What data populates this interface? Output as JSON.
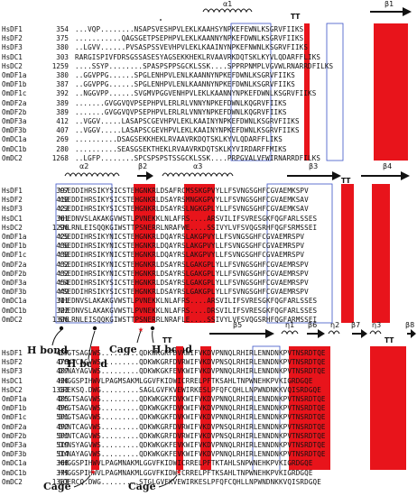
{
  "colors": {
    "conserved_bg": "#e8141b",
    "conserved_text": "#ffffff",
    "similar_text": "#e8141b",
    "box_border": "#3a52c7",
    "text": "#111111"
  },
  "blocks": [
    {
      "structure": [
        {
          "kind": "helix",
          "label": "α1"
        },
        {
          "kind": "tt",
          "label": "TT"
        },
        {
          "kind": "arrow",
          "label": "β1"
        }
      ],
      "rows": [
        {
          "name": "HsDF1",
          "pos": "354",
          "seq": "...VQP........NSAPSVESHPVLEKLKAAHSYNPKEFEWNLKSGRVFIIKS"
        },
        {
          "name": "HsDF2",
          "pos": "375",
          "seq": "...........QAGSGETPSEPHPVLEKLKAANNYNPKEFDWNLKSGRVFIIKS"
        },
        {
          "name": "HsDF3",
          "pos": "380",
          "seq": "..LGVV......PVSASPSSVEVHPVLEKLKAAINYNPKEFNWNLKSGRVFIIKS"
        },
        {
          "name": "HsDC1",
          "pos": "303",
          "seq": "RARGISPIVFDRSGSSASESYAGSEKKHEKLRVAAVRKDQTSKLKYVLQDARFFLIKS"
        },
        {
          "name": "HsDC2",
          "pos": "1259",
          "seq": "....SSYP........SPASPSPPSGCKLSSK....SPPRPNMPLVGVWLRNARRDFILKS"
        },
        {
          "name": "OmDF1a",
          "pos": "380",
          "seq": "..GGVPPG......SPGLENHPVLENLKAANNYNPKEFDWNLKSGRVFIIKS"
        },
        {
          "name": "OmDF1b",
          "pos": "387",
          "seq": "..GGVPPG......SPGLENHPVLENLKAANNYNPKEFDWNLKSGRVFIIKS"
        },
        {
          "name": "OmDF1c",
          "pos": "392",
          "seq": "..NGGVPP......SVGMVPGGVENHPVLEKLKAANNYNPKEFDWNLKSGRVFIIKS"
        },
        {
          "name": "OmDF2a",
          "pos": "389",
          "seq": ".......GVGGVQVPSEPHPVLERLRLVNNYNPKEFDWNLKQGRVFIIKS"
        },
        {
          "name": "OmDF2b",
          "pos": "389",
          "seq": ".......GVGGVQVPSEPHPVLERLRLVNNYNPKEFDWNLKQGRVFIIKS"
        },
        {
          "name": "OmDF3a",
          "pos": "412",
          "seq": "..VGGV.....LASAPSCGEVHPVLEKLKAAINYNPKEFDWNLKSGRVFIIKS"
        },
        {
          "name": "OmDF3b",
          "pos": "407",
          "seq": "..VGGV.....LASAPSCGEVHPVLEKLKAAINYNPKEFDWNLKSGRVFIIKS"
        },
        {
          "name": "OmDC1a",
          "pos": "269",
          "seq": "..........DSAGSEKKHEKLRVAAVRKDQTSKLKYVLQDARFFLIKS"
        },
        {
          "name": "OmDC1b",
          "pos": "280",
          "seq": "..........SEASGSEKTHEKLRVAAVRKDQTSKLKYVIRDARFFMIKS"
        },
        {
          "name": "OmDC2",
          "pos": "1268",
          "seq": "..LGFP........SPCSPSPSTSSGCKLSSK....PRPGVALVFWIRNARRDFILKS"
        }
      ]
    },
    {
      "structure": [
        {
          "kind": "helix",
          "label": "α2"
        },
        {
          "kind": "arrow",
          "label": "β2"
        },
        {
          "kind": "helix",
          "label": "α3"
        },
        {
          "kind": "arrow",
          "label": "β3"
        },
        {
          "kind": "tt",
          "label": "TT"
        },
        {
          "kind": "arrow",
          "label": "β4"
        }
      ],
      "rows": [
        {
          "name": "HsDF1",
          "pos": "397",
          "seq": "YSEDDIHRSIKYSICSTEHGNKRLDSAFRCMSSKGPVYLLFSVNGSGHFCGVAEMKSPV"
        },
        {
          "name": "HsDF2",
          "pos": "418",
          "seq": "YSEDDIHRSIKYSICSTEHGNKRLDSAYRSMNGKGPVYLLFSVNGSGHFCGVAEMKSAV"
        },
        {
          "name": "HsDF3",
          "pos": "423",
          "seq": "YSEDDIHRSIKYSICSTEHGNKRLDSAYRSLNGKGPLYLLFSVNGSGHFCGVAEMKSAV"
        },
        {
          "name": "HsDC1",
          "pos": "361",
          "seq": "NHEDNVSLAKAKGVWSTLPVNEKKLNLAFRS....ARSVILIFSVRESGKFQGFARLSSES"
        },
        {
          "name": "HsDC2",
          "pos": "1296",
          "seq": "SNLRNLEISQQKGIWSTTPSNERRLNRAFWE....SSIVYLVFSVQGSRHFQGFSRMSSEI"
        },
        {
          "name": "OmDF1a",
          "pos": "425",
          "seq": "YSEDDIHRSIKYNICSTEHGNKRLDQAYRSLAKGPVYLLFSVNGSGHFCGVAEMRSPV"
        },
        {
          "name": "OmDF1b",
          "pos": "436",
          "seq": "YSEDDIHRSIKYNICSTEHGNKRLDQAYRSLAKGPVYLLFSVNGSGHFCGVAEMRSPV"
        },
        {
          "name": "OmDF1c",
          "pos": "438",
          "seq": "YSEDDIHRSIKYNICSTEHGNKRLDQAYRSLAKGPVYLLFSVNGSGHFCGVAEMRSPV"
        },
        {
          "name": "OmDF2a",
          "pos": "432",
          "seq": "YSEDDIHRSIKYNICSTEHGNKRLDSAYRSLGAKGPLYLLFSVNGSGHFCGVAEMRSPV"
        },
        {
          "name": "OmDF2b",
          "pos": "432",
          "seq": "YSEDDIHRSIKYNICSTEHGNKRLDSAYRSLGAKGPLYLLFSVNGSGHFCGVAEMRSPV"
        },
        {
          "name": "OmDF3a",
          "pos": "454",
          "seq": "YSEDDIHRSIKYSICSTEHGNKRLDSAYRSLGAKGPLYLLFSVNGSGHFCGVAEMRSPV"
        },
        {
          "name": "OmDF3b",
          "pos": "449",
          "seq": "YSEDDIHRSIKYSICSTEHGNKRLDSAYRSLGAKGPLYLLFSVNGSGHFCGVAEMRSPV"
        },
        {
          "name": "OmDC1a",
          "pos": "311",
          "seq": "NHEDNVSLAKAKGVWSTLPVNEKKLNLAFRS....ARSVILIFSVRESGKFQGFARLSSES"
        },
        {
          "name": "OmDC1b",
          "pos": "322",
          "seq": "NHEDNVSLAKAKGVWSTLPVNEKKLNLAFRS....DRSVILIFSVRESGKFQGFARLSSES"
        },
        {
          "name": "OmDC2",
          "pos": "1306",
          "seq": "SNLRNLEISQQKGIWSTTPSNERRLNRAFLE....SSIVYLVFSVQGSRHFQGFARMSSEI"
        }
      ],
      "annotations": [
        {
          "label": "H bond"
        },
        {
          "label": "H bond"
        },
        {
          "label": "Cage"
        },
        {
          "label": "H bond"
        }
      ]
    },
    {
      "structure": [
        {
          "kind": "tt",
          "label": "TT"
        },
        {
          "kind": "arrow",
          "label": "β5"
        },
        {
          "kind": "helix",
          "label": "η1"
        },
        {
          "kind": "arrow",
          "label": "β6"
        },
        {
          "kind": "helix",
          "label": "η2"
        },
        {
          "kind": "arrow",
          "label": "β7"
        },
        {
          "kind": "helix",
          "label": "η3"
        },
        {
          "kind": "tt",
          "label": "TT"
        },
        {
          "kind": "arrow",
          "label": "β8"
        }
      ],
      "rows": [
        {
          "name": "HsDF1",
          "pos": "457",
          "seq": "DYGTSAGVWS.........QDKWKGKFDVKWIFVKDVPNNQLRHIRLENNDNKPVTNSRDTQE"
        },
        {
          "name": "HsDF2",
          "pos": "478",
          "seq": "DYNTCAGVWS.........QDKWKGRFDVRWIFVKDVPNSQLRHIRLENNDNKPVTNSRDTQE"
        },
        {
          "name": "HsDF3",
          "pos": "487",
          "seq": "DYNAYAGVWS.........QDKWKGKFEVKWIFVKDVPNNQLRHIRLENNDNKPVTNSRDTQE"
        },
        {
          "name": "HsDC1",
          "pos": "420",
          "seq": "HHGGSPIHWVLPAGMSAKMLGGVFKIDWICRRELPFTKSAHLTNPWNEHKPVKIGRDGQE"
        },
        {
          "name": "HsDC2",
          "pos": "1353",
          "seq": "GREKSQ.DWG.........SAGLGVFKVEWIRKESLPFQFCQHLLNPWNDNKKVQISRDGQE"
        },
        {
          "name": "OmDF1a",
          "pos": "485",
          "seq": "DYGTSAGVWS.........QDKWKGKFDVKWIFVKDVPNNQLRHIRLENNDNKPVTNSRDTQE"
        },
        {
          "name": "OmDF1b",
          "pos": "496",
          "seq": "DYGTSAGVWS.........QDKWKGKFDVKWIFVKDVPNNQLRHIRLENNDNKPVTNSRDTQE"
        },
        {
          "name": "OmDF1c",
          "pos": "501",
          "seq": "DYGTSAGVWS.........QDKWKGKFDVKWIFVKDVPNNQLRHIRLENNDNKPVTNSRDTQE"
        },
        {
          "name": "OmDF2a",
          "pos": "492",
          "seq": "DYNTCAGVWS.........QDKWKGRFDVRWIFVKDVPNSQLRHIRLENNDNKPVTNSRDTQE"
        },
        {
          "name": "OmDF2b",
          "pos": "501",
          "seq": "DYNTCAGVWS.........QDKWKGRFDVRWIFVKDVPNSQLRHIRLENNDNKPVTNSRDTQE"
        },
        {
          "name": "OmDF3a",
          "pos": "519",
          "seq": "DYNSYAGVWS.........QDKWKGKFEVKWIFVKDVPNNQLRHIRLENNDNKPVTNSRDTQE"
        },
        {
          "name": "OmDF3b",
          "pos": "514",
          "seq": "DYNAYAGVWS.........QDKWKGKFEVKWIFVKDVPNNQLRHIRLENNDNKPVTNSRDTQE"
        },
        {
          "name": "OmDC1a",
          "pos": "368",
          "seq": "HHGGSPIHWVLPAGMNAKMLGGVFKIDWICRRELPFTKTAHLSNPWNEHKPVKIGRDGQE"
        },
        {
          "name": "OmDC1b",
          "pos": "379",
          "seq": "HHGGSPIHWVLPAGMNAKMLGGVFKIDWICRRELPFTKSAHLTNPWNEHKPVKIGRDGQE"
        },
        {
          "name": "OmDC2",
          "pos": "1363",
          "seq": "GQERCQ.DWG.........STGLGVFKVEWIRKESLPFQFCQHLLNPWNDNKKVQISRDGQE"
        }
      ],
      "annotations": [
        {
          "label": "Cage"
        },
        {
          "label": "Cage"
        }
      ]
    }
  ]
}
